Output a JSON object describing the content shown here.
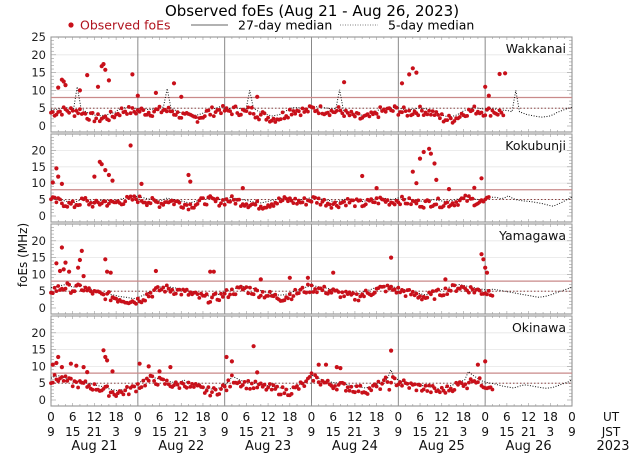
{
  "chart_data": {
    "type": "scatter",
    "title": "Observed foEs (Aug 21 - Aug 26, 2023)",
    "ylabel": "foEs (MHz)",
    "xlabel_rows": [
      "UT",
      "JST"
    ],
    "year_label": "2023",
    "legend": {
      "placement": "top",
      "entries": [
        {
          "label": "Observed foEs",
          "style": "red-dot"
        },
        {
          "label": "27-day median",
          "style": "solid-line"
        },
        {
          "label": "5-day median",
          "style": "dotted-line"
        }
      ]
    },
    "colors": {
      "observed": "#c8101a",
      "threshold_line": "#c98a8a",
      "median": "#111111",
      "vgrid": "#888888",
      "hgrid": "#e6e6e6"
    },
    "x_range_hours_ut": [
      0,
      144
    ],
    "days": [
      "Aug 21",
      "Aug 22",
      "Aug 23",
      "Aug 24",
      "Aug 25",
      "Aug 26"
    ],
    "ut_ticks": [
      "0",
      "6",
      "12",
      "18"
    ],
    "jst_ticks": [
      "9",
      "15",
      "21",
      "3"
    ],
    "final_ut_tick": "0",
    "final_jst_tick": "9",
    "panels": [
      {
        "station": "Wakkanai",
        "ylim": [
          0,
          25
        ],
        "yticks": [
          "0",
          "5",
          "10",
          "15",
          "20",
          "25"
        ],
        "upper_ref": 8,
        "lower_ref": 5,
        "median_trace": [
          4.5,
          4.6,
          4.8,
          5,
          5.2,
          5,
          4.6,
          11,
          5,
          4.2,
          3.6,
          3.2,
          3,
          2.9,
          3,
          3.2,
          3.5,
          3.8,
          4.6,
          5,
          5.2,
          5,
          4.8,
          4.9,
          5,
          4.8,
          4.6,
          4.7,
          5,
          5,
          5.3,
          10.5,
          5,
          4.5,
          4,
          3.6,
          3.2,
          3,
          3,
          3.1,
          3.4,
          3.8,
          4.5,
          4.8,
          5,
          5.4,
          5.1,
          4.8,
          5,
          5.2,
          5,
          4.8,
          4.5,
          10,
          5,
          4.3,
          3.8,
          3.4,
          3.1,
          2.8,
          3,
          3.2,
          3.8,
          4.4,
          5,
          5.2,
          5.1,
          5,
          4.8,
          5.2,
          5.5,
          5.4,
          5.3,
          5.1,
          5,
          4.8,
          4.9,
          10.2,
          4.5,
          4,
          3.7,
          3.5,
          3.2,
          3,
          3,
          3.3,
          3.7,
          4.3,
          4.8,
          5,
          5,
          5.1,
          5.3,
          5,
          4.7,
          4.5,
          4.6,
          4.8,
          5,
          5,
          4.8,
          4.6,
          4.3,
          3.6,
          3.2,
          2.8,
          2.6,
          2.7,
          3,
          3.5,
          4.2,
          4.7,
          5,
          5.2,
          5,
          4.8,
          4.7,
          4.8,
          5,
          4.6,
          4.5,
          4.4,
          4.3,
          4,
          10,
          4,
          3.6,
          3.2,
          3,
          2.8,
          2.6,
          2.5,
          2.6,
          2.8,
          3.2,
          3.8,
          4.2,
          4.6,
          5,
          5.2
        ],
        "observed_peaks": [
          {
            "hour": 2,
            "value": 10.8
          },
          {
            "hour": 3,
            "value": 13
          },
          {
            "hour": 3.5,
            "value": 12.5
          },
          {
            "hour": 4,
            "value": 11.5
          },
          {
            "hour": 8,
            "value": 10
          },
          {
            "hour": 10,
            "value": 14.3
          },
          {
            "hour": 13,
            "value": 11
          },
          {
            "hour": 14,
            "value": 16.8
          },
          {
            "hour": 14.5,
            "value": 17.4
          },
          {
            "hour": 15,
            "value": 15.8
          },
          {
            "hour": 16,
            "value": 12.8
          },
          {
            "hour": 22.5,
            "value": 14.5
          },
          {
            "hour": 24,
            "value": 8.5
          },
          {
            "hour": 29,
            "value": 9.3
          },
          {
            "hour": 34,
            "value": 12
          },
          {
            "hour": 36,
            "value": 8.2
          },
          {
            "hour": 57,
            "value": 8.2
          },
          {
            "hour": 81,
            "value": 12.3
          },
          {
            "hour": 97,
            "value": 12
          },
          {
            "hour": 99,
            "value": 14.5
          },
          {
            "hour": 100,
            "value": 16.2
          },
          {
            "hour": 101,
            "value": 15
          },
          {
            "hour": 120,
            "value": 11
          },
          {
            "hour": 121,
            "value": 8.5
          },
          {
            "hour": 124,
            "value": 14.6
          },
          {
            "hour": 125.5,
            "value": 14.8
          }
        ]
      },
      {
        "station": "Kokubunji",
        "ylim": [
          0,
          25
        ],
        "yticks": [
          "0",
          "5",
          "10",
          "15",
          "20"
        ],
        "upper_ref": 8,
        "lower_ref": 5,
        "median_trace": [
          5.5,
          5.2,
          5,
          4.8,
          4.5,
          4.2,
          4,
          4.5,
          5,
          5.5,
          4.8,
          4.5,
          4.2,
          4.6,
          5,
          4.8,
          4.5,
          4.8,
          5,
          5.3,
          5.5,
          5.6,
          5.8,
          6,
          5.7,
          5.5,
          5.2,
          5,
          4.8,
          4.6,
          5,
          5.5,
          5.2,
          5,
          4.8,
          4.5,
          4.2,
          4,
          4.3,
          4.6,
          5,
          5.2,
          5.5,
          5.3,
          5,
          5.1,
          5.3,
          5.5,
          5.6,
          5.4,
          5.2,
          5,
          4.8,
          4.5,
          4.3,
          4.1,
          4,
          4.2,
          4.5,
          4.8,
          5,
          5.3,
          5.5,
          5.6,
          5.5,
          5.3,
          5.1,
          5,
          5.2,
          5.5,
          5.8,
          5.5,
          5.2,
          5,
          4.8,
          4.5,
          4.3,
          4.6,
          5,
          5.2,
          5,
          4.8,
          4.6,
          4.4,
          4.6,
          4.9,
          5.2,
          5.4,
          5.6,
          5.4,
          5.2,
          5,
          5.3,
          5.6,
          5.4,
          5.2,
          5,
          4.8,
          4.6,
          4.5,
          4.6,
          4.8,
          5,
          4.8,
          4.6,
          4.5,
          4.6,
          4.7,
          5,
          5.3,
          5.6,
          5.8,
          5.5,
          5.2,
          5,
          4.9,
          5.1,
          5.5,
          5.8,
          5.6,
          5.3,
          5.5,
          6.2,
          5.5,
          5,
          4.8,
          4.6,
          4.5,
          4.4,
          4.2,
          4,
          3.8,
          3.5,
          3.2,
          3,
          3.5,
          4,
          4.6,
          5.2,
          5.8
        ],
        "observed_peaks": [
          {
            "hour": 0.5,
            "value": 10.2
          },
          {
            "hour": 1.5,
            "value": 14.5
          },
          {
            "hour": 2,
            "value": 12
          },
          {
            "hour": 3,
            "value": 9.8
          },
          {
            "hour": 12,
            "value": 12
          },
          {
            "hour": 13.5,
            "value": 16.5
          },
          {
            "hour": 14,
            "value": 15.8
          },
          {
            "hour": 15,
            "value": 14
          },
          {
            "hour": 16,
            "value": 12.5
          },
          {
            "hour": 17,
            "value": 10.8
          },
          {
            "hour": 22,
            "value": 21.5
          },
          {
            "hour": 25,
            "value": 9.8
          },
          {
            "hour": 38,
            "value": 12.5
          },
          {
            "hour": 38.5,
            "value": 10.5
          },
          {
            "hour": 53,
            "value": 8.5
          },
          {
            "hour": 86,
            "value": 12.2
          },
          {
            "hour": 90,
            "value": 8.5
          },
          {
            "hour": 100,
            "value": 13.5
          },
          {
            "hour": 101,
            "value": 10
          },
          {
            "hour": 102,
            "value": 17.5
          },
          {
            "hour": 103,
            "value": 19.5
          },
          {
            "hour": 104.5,
            "value": 20.5
          },
          {
            "hour": 105,
            "value": 19
          },
          {
            "hour": 106,
            "value": 16
          },
          {
            "hour": 106.5,
            "value": 11
          },
          {
            "hour": 110,
            "value": 8.2
          },
          {
            "hour": 117,
            "value": 8.6
          },
          {
            "hour": 119,
            "value": 11.5
          }
        ]
      },
      {
        "station": "Yamagawa",
        "ylim": [
          0,
          25
        ],
        "yticks": [
          "0",
          "5",
          "10",
          "15",
          "20"
        ],
        "upper_ref": 8,
        "lower_ref": 5,
        "median_trace": [
          6,
          6.3,
          6.5,
          6.8,
          7,
          6.5,
          6.2,
          6.5,
          6.8,
          6.3,
          5.8,
          5.5,
          5,
          4.8,
          4.5,
          4.2,
          4,
          3.8,
          3.5,
          3.3,
          3.2,
          3,
          2.8,
          3,
          3.5,
          4,
          4.6,
          5.2,
          5.8,
          6.2,
          6.5,
          6.4,
          6.2,
          6,
          5.8,
          5.5,
          5.2,
          5,
          4.6,
          4.3,
          4,
          3.8,
          3.6,
          3.5,
          3.8,
          4.2,
          4.6,
          5,
          5.5,
          5.8,
          6,
          6.3,
          6.5,
          6.2,
          5.8,
          5.5,
          5.2,
          4.8,
          4.5,
          4.2,
          4,
          3.8,
          3.9,
          4.2,
          4.6,
          5,
          5.4,
          5.8,
          6.2,
          6.5,
          6.6,
          6.4,
          6.2,
          6,
          5.8,
          5.5,
          5.2,
          5,
          4.8,
          4.5,
          4.2,
          4,
          4.2,
          4.6,
          5,
          5.4,
          5.8,
          6.1,
          6.4,
          6.6,
          6.5,
          6.3,
          6.1,
          5.9,
          5.6,
          5.3,
          5,
          4.7,
          4.4,
          4.1,
          3.9,
          4.2,
          4.6,
          5,
          5.4,
          5.8,
          6.1,
          6.4,
          6.8,
          7,
          6.8,
          6.5,
          6.3,
          6,
          5.8,
          5.6,
          5.4,
          5.5,
          5.6,
          5.4,
          5.2,
          5,
          4.8,
          4.6,
          4.4,
          4.2,
          4,
          3.8,
          3.6,
          3.4,
          3.2,
          3.3,
          3.5,
          3.8,
          4.2,
          4.6,
          5,
          5.4,
          5.8,
          6.2
        ],
        "observed_peaks": [
          {
            "hour": 1.5,
            "value": 13.3
          },
          {
            "hour": 2.5,
            "value": 11
          },
          {
            "hour": 3,
            "value": 18
          },
          {
            "hour": 3.5,
            "value": 11.5
          },
          {
            "hour": 4,
            "value": 13.5
          },
          {
            "hour": 5,
            "value": 10.8
          },
          {
            "hour": 7.5,
            "value": 12
          },
          {
            "hour": 8,
            "value": 14.3
          },
          {
            "hour": 8.5,
            "value": 17
          },
          {
            "hour": 9,
            "value": 9.5
          },
          {
            "hour": 15,
            "value": 14.5
          },
          {
            "hour": 15.5,
            "value": 10.8
          },
          {
            "hour": 16.5,
            "value": 10.5
          },
          {
            "hour": 29,
            "value": 11
          },
          {
            "hour": 44,
            "value": 10.8
          },
          {
            "hour": 45,
            "value": 10.8
          },
          {
            "hour": 58,
            "value": 8.5
          },
          {
            "hour": 66,
            "value": 9
          },
          {
            "hour": 71,
            "value": 9
          },
          {
            "hour": 78,
            "value": 10.5
          },
          {
            "hour": 94,
            "value": 15
          },
          {
            "hour": 109,
            "value": 8.5
          },
          {
            "hour": 119,
            "value": 16
          },
          {
            "hour": 119.5,
            "value": 14.5
          },
          {
            "hour": 120,
            "value": 12
          },
          {
            "hour": 120.5,
            "value": 10.5
          }
        ]
      },
      {
        "station": "Okinawa",
        "ylim": [
          0,
          25
        ],
        "yticks": [
          "0",
          "5",
          "10",
          "15",
          "20"
        ],
        "upper_ref": 8,
        "lower_ref": 5,
        "median_trace": [
          6.5,
          7,
          7.2,
          7,
          6.5,
          6,
          5.8,
          5.6,
          5.4,
          5.2,
          5,
          4.8,
          4.5,
          4.2,
          4,
          3.6,
          3.2,
          3,
          2.8,
          3,
          3.2,
          3.5,
          4,
          4.5,
          5.2,
          6,
          6.5,
          6.8,
          6.6,
          6.3,
          6,
          5.8,
          5.5,
          5.3,
          5,
          5.2,
          6,
          5,
          4.7,
          4.4,
          4.1,
          3.8,
          3.5,
          3.3,
          3.2,
          3.4,
          3.8,
          4.4,
          5.4,
          7,
          6.6,
          6,
          5.6,
          5.4,
          5.2,
          5,
          4.8,
          4.6,
          4.4,
          4.2,
          4,
          3.8,
          3.6,
          3.4,
          3.2,
          3.4,
          3.8,
          4.4,
          5,
          5.5,
          6.5,
          7.5,
          6.8,
          6.2,
          5.8,
          5.5,
          5.3,
          5.1,
          5,
          4.8,
          4.6,
          4.4,
          4.2,
          4,
          3.8,
          3.6,
          3.8,
          4.2,
          4.6,
          5,
          5.6,
          6.2,
          9,
          6.5,
          6,
          5.6,
          5.2,
          5,
          4.8,
          4.6,
          4.4,
          4.2,
          4,
          3.8,
          3.6,
          3.4,
          3.5,
          3.8,
          4.2,
          4.6,
          5,
          5.5,
          6,
          8.5,
          7.5,
          6.8,
          6,
          5.5,
          5.2,
          5,
          4.8,
          4.5,
          4.2,
          4,
          3.8,
          3.6,
          3.8,
          4.2,
          4.5,
          4.4,
          4.2,
          4,
          3.8,
          3.6,
          3.5,
          3.6,
          3.8,
          4.2,
          4.6,
          5,
          5.4,
          6
        ],
        "observed_peaks": [
          {
            "hour": 0.5,
            "value": 10.5
          },
          {
            "hour": 1.5,
            "value": 11
          },
          {
            "hour": 2,
            "value": 12.8
          },
          {
            "hour": 3,
            "value": 9.8
          },
          {
            "hour": 5.5,
            "value": 10.8
          },
          {
            "hour": 7,
            "value": 10.2
          },
          {
            "hour": 9,
            "value": 9.8
          },
          {
            "hour": 10,
            "value": 8.3
          },
          {
            "hour": 14.5,
            "value": 14.8
          },
          {
            "hour": 15,
            "value": 12.8
          },
          {
            "hour": 15.5,
            "value": 11.8
          },
          {
            "hour": 17,
            "value": 8.5
          },
          {
            "hour": 24.5,
            "value": 10.8
          },
          {
            "hour": 27,
            "value": 10
          },
          {
            "hour": 30,
            "value": 8.5
          },
          {
            "hour": 33,
            "value": 9.8
          },
          {
            "hour": 48.5,
            "value": 12.8
          },
          {
            "hour": 50,
            "value": 11.5
          },
          {
            "hour": 56,
            "value": 16
          },
          {
            "hour": 57,
            "value": 8.2
          },
          {
            "hour": 74,
            "value": 10.5
          },
          {
            "hour": 76,
            "value": 10.5
          },
          {
            "hour": 79,
            "value": 9.8
          },
          {
            "hour": 80,
            "value": 9.5
          },
          {
            "hour": 94,
            "value": 14.7
          },
          {
            "hour": 118,
            "value": 10.5
          },
          {
            "hour": 120,
            "value": 11.5
          }
        ]
      }
    ]
  }
}
